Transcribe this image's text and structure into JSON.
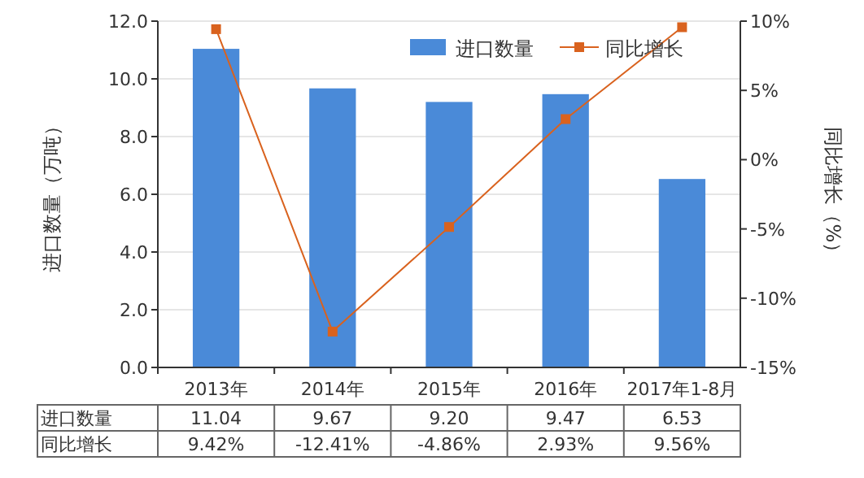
{
  "chart_data": {
    "type": "bar",
    "xlabel": null,
    "ylabel": "进口数量（万吨）",
    "y2label": "同比增长（%）",
    "categories": [
      "2013年",
      "2014年",
      "2015年",
      "2016年",
      "2017年1-8月"
    ],
    "series": [
      {
        "name": "进口数量",
        "color": "#4a8ad8",
        "values": [
          11.04,
          9.67,
          9.2,
          9.47,
          6.53
        ],
        "value_labels": [
          "11.04",
          "9.67",
          "9.20",
          "9.47",
          "6.53"
        ]
      },
      {
        "name": "同比增长",
        "type": "line",
        "axis": "y2",
        "color": "#d9621e",
        "marker": "square",
        "values": [
          9.42,
          -12.41,
          -4.86,
          2.93,
          9.56
        ],
        "value_labels": [
          "9.42%",
          "-12.41%",
          "-4.86%",
          "2.93%",
          "9.56%"
        ]
      }
    ],
    "ylim": [
      0,
      12
    ],
    "yticks": [
      {
        "value": 0,
        "label": "0.0"
      },
      {
        "value": 2,
        "label": "2.0"
      },
      {
        "value": 4,
        "label": "4.0"
      },
      {
        "value": 6,
        "label": "6.0"
      },
      {
        "value": 8,
        "label": "8.0"
      },
      {
        "value": 10,
        "label": "10.0"
      },
      {
        "value": 12,
        "label": "12.0"
      }
    ],
    "y2lim": [
      -15,
      10
    ],
    "y2ticks": [
      {
        "value": -15,
        "label": "-15%"
      },
      {
        "value": -10,
        "label": "-10%"
      },
      {
        "value": -5,
        "label": "-5%"
      },
      {
        "value": 0,
        "label": "0%"
      },
      {
        "value": 5,
        "label": "5%"
      },
      {
        "value": 10,
        "label": "10%"
      }
    ],
    "grid": "y",
    "legend": "top right"
  }
}
